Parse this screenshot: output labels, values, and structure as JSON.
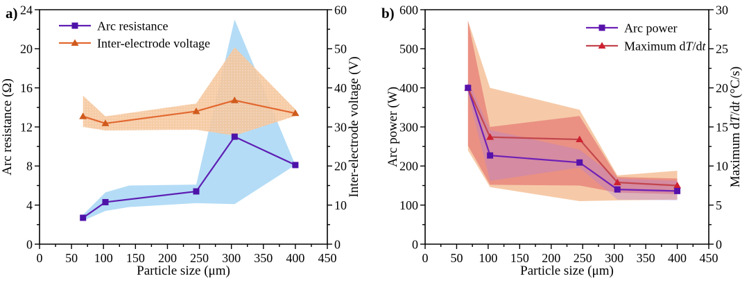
{
  "figure": {
    "background": "#ffffff",
    "text_color": "#000000"
  },
  "chart_data": [
    {
      "panel_label": "a)",
      "type": "line",
      "xlabel": "Particle size (μm)",
      "xlim": [
        0,
        450
      ],
      "x_ticks": [
        0,
        50,
        100,
        150,
        200,
        250,
        300,
        350,
        400,
        450
      ],
      "left_axis": {
        "label": "Arc resistance (Ω)",
        "lim": [
          0,
          24
        ],
        "ticks": [
          0,
          4,
          8,
          12,
          16,
          20,
          24
        ]
      },
      "right_axis": {
        "label": "Inter-electrode voltage (V)",
        "lim": [
          0,
          60
        ],
        "ticks": [
          0,
          10,
          20,
          30,
          40,
          50,
          60
        ]
      },
      "x": [
        68,
        103,
        245,
        305,
        400
      ],
      "series": [
        {
          "name": "Arc resistance",
          "label": "Arc resistance",
          "axis": "left",
          "marker": "square",
          "line_color": "#5e1db3",
          "marker_color": "#4d12a8",
          "values": [
            2.7,
            4.3,
            5.4,
            11.0,
            8.1
          ]
        },
        {
          "name": "Inter-electrode voltage",
          "label": "Inter-electrode voltage",
          "axis": "right",
          "marker": "triangle",
          "line_color": "#e2672f",
          "marker_color": "#d05a1c",
          "values": [
            32.7,
            30.9,
            34.0,
            36.8,
            33.5
          ]
        }
      ],
      "bands": [
        {
          "name": "arc-resistance-error-band",
          "axis": "left",
          "color": "#a7d6f4",
          "opacity": 0.85,
          "x": [
            68,
            103,
            140,
            245,
            305,
            400
          ],
          "upper": [
            3.0,
            5.3,
            6.0,
            6.1,
            23.0,
            8.1
          ],
          "lower": [
            2.4,
            3.4,
            3.8,
            4.2,
            4.1,
            8.1
          ]
        },
        {
          "name": "voltage-error-band",
          "axis": "right",
          "color": "#f5c69c",
          "opacity": 0.9,
          "texture": "dots",
          "x": [
            68,
            103,
            245,
            305,
            400
          ],
          "upper": [
            38.0,
            32.7,
            36.0,
            50.4,
            34.5
          ],
          "lower": [
            30.0,
            29.1,
            29.3,
            27.8,
            32.8
          ]
        }
      ],
      "legend": {
        "position": "top-left"
      }
    },
    {
      "panel_label": "b)",
      "type": "line",
      "xlabel": "Particle size (μm)",
      "xlim": [
        0,
        450
      ],
      "x_ticks": [
        0,
        50,
        100,
        150,
        200,
        250,
        300,
        350,
        400,
        450
      ],
      "left_axis": {
        "label": "Arc power (W)",
        "lim": [
          0,
          600
        ],
        "ticks": [
          0,
          100,
          200,
          300,
          400,
          500,
          600
        ]
      },
      "right_axis": {
        "label": "Maximum d*T*/d*t* (°C/s)",
        "lim": [
          0,
          30
        ],
        "ticks": [
          0,
          5,
          10,
          15,
          20,
          25,
          30
        ]
      },
      "x": [
        68,
        103,
        245,
        305,
        400
      ],
      "series": [
        {
          "name": "Arc power",
          "label": "Arc power",
          "axis": "left",
          "marker": "square",
          "line_color": "#6e20b6",
          "marker_color": "#5712aa",
          "values": [
            400,
            227,
            209,
            140,
            136
          ]
        },
        {
          "name": "Maximum dT/dt",
          "label": "Maximum d*T*/d*t*",
          "axis": "right",
          "marker": "triangle",
          "line_color": "#c2454d",
          "marker_color": "#ce2130",
          "values": [
            20.0,
            13.7,
            13.4,
            7.9,
            7.5
          ]
        }
      ],
      "bands": [
        {
          "name": "dtdt-range-band",
          "axis": "right",
          "color": "#f4bd92",
          "opacity": 0.8,
          "x": [
            68,
            103,
            245,
            305,
            400
          ],
          "upper": [
            28.6,
            20.0,
            17.2,
            8.8,
            9.4
          ],
          "lower": [
            12.0,
            7.3,
            5.5,
            5.6,
            5.7
          ]
        },
        {
          "name": "dtdt-error-band",
          "axis": "right",
          "color": "#d84350",
          "opacity": 0.42,
          "x": [
            68,
            103,
            245,
            305,
            400
          ],
          "upper": [
            28.6,
            15.0,
            16.4,
            8.6,
            8.4
          ],
          "lower": [
            12.6,
            7.6,
            7.5,
            6.6,
            6.4
          ]
        },
        {
          "name": "arc-power-error-band",
          "axis": "left",
          "color": "#a97fe0",
          "opacity": 0.32,
          "x": [
            68,
            103,
            245,
            305,
            400
          ],
          "upper": [
            420,
            292,
            242,
            168,
            162
          ],
          "lower": [
            385,
            162,
            196,
            114,
            112
          ]
        }
      ],
      "legend": {
        "position": "top-right"
      }
    }
  ]
}
